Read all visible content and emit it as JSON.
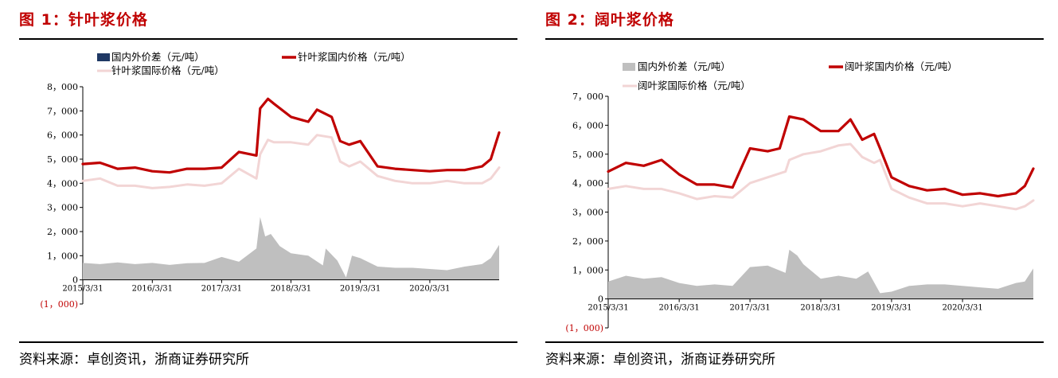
{
  "panels": [
    {
      "title": "图 1：针叶浆价格",
      "source": "资料来源：卓创资讯，浙商证券研究所",
      "chart_data": {
        "type": "line",
        "title": "图 1：针叶浆价格",
        "ylim": [
          -1000,
          8000
        ],
        "yticks": [
          "8，000",
          "7，000",
          "6，000",
          "5，000",
          "4，000",
          "3，000",
          "2，000",
          "1，000",
          "0",
          "(1，000)"
        ],
        "ytick_values": [
          8000,
          7000,
          6000,
          5000,
          4000,
          3000,
          2000,
          1000,
          0,
          -1000
        ],
        "xlim": [
          "2015-03-31",
          "2021-03-31"
        ],
        "xticks": [
          "2015/3/31",
          "2016/3/31",
          "2017/3/31",
          "2018/3/31",
          "2019/3/31",
          "2020/3/31"
        ],
        "legend_position": "top",
        "series": [
          {
            "name": "国内外价差（元/吨）",
            "type": "area",
            "color": "#bfbfbf",
            "legend_color": "#1f3864",
            "points": [
              [
                "2015-03-31",
                700
              ],
              [
                "2015-06-30",
                650
              ],
              [
                "2015-09-30",
                720
              ],
              [
                "2015-12-31",
                650
              ],
              [
                "2016-03-31",
                700
              ],
              [
                "2016-06-30",
                620
              ],
              [
                "2016-09-30",
                690
              ],
              [
                "2016-12-31",
                700
              ],
              [
                "2017-03-31",
                950
              ],
              [
                "2017-06-30",
                750
              ],
              [
                "2017-09-30",
                1300
              ],
              [
                "2017-10-20",
                2600
              ],
              [
                "2017-11-15",
                1800
              ],
              [
                "2017-12-15",
                1900
              ],
              [
                "2018-01-31",
                1400
              ],
              [
                "2018-03-31",
                1100
              ],
              [
                "2018-06-30",
                1000
              ],
              [
                "2018-09-15",
                600
              ],
              [
                "2018-09-30",
                1300
              ],
              [
                "2018-11-30",
                800
              ],
              [
                "2019-01-15",
                100
              ],
              [
                "2019-02-15",
                1000
              ],
              [
                "2019-03-31",
                900
              ],
              [
                "2019-06-30",
                550
              ],
              [
                "2019-09-30",
                500
              ],
              [
                "2019-12-31",
                500
              ],
              [
                "2020-03-31",
                450
              ],
              [
                "2020-06-30",
                400
              ],
              [
                "2020-09-30",
                550
              ],
              [
                "2020-12-31",
                650
              ],
              [
                "2021-02-15",
                900
              ],
              [
                "2021-03-31",
                1450
              ]
            ]
          },
          {
            "name": "针叶浆国内价格（元/吨）",
            "type": "line",
            "color": "#c00000",
            "points": [
              [
                "2015-03-31",
                4800
              ],
              [
                "2015-06-30",
                4850
              ],
              [
                "2015-09-30",
                4600
              ],
              [
                "2015-12-31",
                4650
              ],
              [
                "2016-03-31",
                4500
              ],
              [
                "2016-06-30",
                4450
              ],
              [
                "2016-09-30",
                4600
              ],
              [
                "2016-12-31",
                4600
              ],
              [
                "2017-03-31",
                4650
              ],
              [
                "2017-06-30",
                5300
              ],
              [
                "2017-09-30",
                5150
              ],
              [
                "2017-10-20",
                7100
              ],
              [
                "2017-11-30",
                7500
              ],
              [
                "2017-12-31",
                7300
              ],
              [
                "2018-03-31",
                6750
              ],
              [
                "2018-06-30",
                6550
              ],
              [
                "2018-08-15",
                7050
              ],
              [
                "2018-10-31",
                6750
              ],
              [
                "2018-12-15",
                5750
              ],
              [
                "2019-01-31",
                5600
              ],
              [
                "2019-03-31",
                5750
              ],
              [
                "2019-06-30",
                4700
              ],
              [
                "2019-09-30",
                4600
              ],
              [
                "2019-12-31",
                4550
              ],
              [
                "2020-03-31",
                4500
              ],
              [
                "2020-06-30",
                4550
              ],
              [
                "2020-09-30",
                4550
              ],
              [
                "2020-12-31",
                4700
              ],
              [
                "2021-02-15",
                5000
              ],
              [
                "2021-03-31",
                6100
              ]
            ]
          },
          {
            "name": "针叶浆国际价格（元/吨）",
            "type": "line",
            "color": "#f2d5d5",
            "points": [
              [
                "2015-03-31",
                4100
              ],
              [
                "2015-06-30",
                4200
              ],
              [
                "2015-09-30",
                3900
              ],
              [
                "2015-12-31",
                3900
              ],
              [
                "2016-03-31",
                3800
              ],
              [
                "2016-06-30",
                3850
              ],
              [
                "2016-09-30",
                3950
              ],
              [
                "2016-12-31",
                3900
              ],
              [
                "2017-03-31",
                4000
              ],
              [
                "2017-06-30",
                4600
              ],
              [
                "2017-09-30",
                4200
              ],
              [
                "2017-10-20",
                5200
              ],
              [
                "2017-11-30",
                5800
              ],
              [
                "2017-12-31",
                5700
              ],
              [
                "2018-03-31",
                5700
              ],
              [
                "2018-06-30",
                5600
              ],
              [
                "2018-08-15",
                6000
              ],
              [
                "2018-10-31",
                5900
              ],
              [
                "2018-12-15",
                4900
              ],
              [
                "2019-01-31",
                4700
              ],
              [
                "2019-03-31",
                4900
              ],
              [
                "2019-06-30",
                4300
              ],
              [
                "2019-09-30",
                4100
              ],
              [
                "2019-12-31",
                4000
              ],
              [
                "2020-03-31",
                4000
              ],
              [
                "2020-06-30",
                4100
              ],
              [
                "2020-09-30",
                4000
              ],
              [
                "2020-12-31",
                4000
              ],
              [
                "2021-02-15",
                4200
              ],
              [
                "2021-03-31",
                4650
              ]
            ]
          }
        ]
      }
    },
    {
      "title": "图 2：阔叶浆价格",
      "source": "资料来源：卓创资讯，浙商证券研究所",
      "chart_data": {
        "type": "line",
        "title": "图 2：阔叶浆价格",
        "ylim": [
          -1000,
          7000
        ],
        "yticks": [
          "7，000",
          "6，000",
          "5，000",
          "4，000",
          "3，000",
          "2，000",
          "1，000",
          "0",
          "(1，000)"
        ],
        "ytick_values": [
          7000,
          6000,
          5000,
          4000,
          3000,
          2000,
          1000,
          0,
          -1000
        ],
        "xlim": [
          "2015-03-31",
          "2021-03-31"
        ],
        "xticks": [
          "2015/3/31",
          "2016/3/31",
          "2017/3/31",
          "2018/3/31",
          "2019/3/31",
          "2020/3/31"
        ],
        "legend_position": "top",
        "series": [
          {
            "name": "国内外价差（元/吨）",
            "type": "area",
            "color": "#bfbfbf",
            "legend_color": "#bfbfbf",
            "points": [
              [
                "2015-03-31",
                600
              ],
              [
                "2015-06-30",
                800
              ],
              [
                "2015-09-30",
                700
              ],
              [
                "2015-12-31",
                750
              ],
              [
                "2016-03-31",
                550
              ],
              [
                "2016-06-30",
                450
              ],
              [
                "2016-09-30",
                500
              ],
              [
                "2016-12-31",
                450
              ],
              [
                "2017-03-31",
                1100
              ],
              [
                "2017-06-30",
                1150
              ],
              [
                "2017-09-30",
                900
              ],
              [
                "2017-10-20",
                1700
              ],
              [
                "2017-11-30",
                1500
              ],
              [
                "2017-12-31",
                1200
              ],
              [
                "2018-03-31",
                700
              ],
              [
                "2018-06-30",
                800
              ],
              [
                "2018-09-30",
                700
              ],
              [
                "2018-11-30",
                950
              ],
              [
                "2019-01-31",
                200
              ],
              [
                "2019-03-31",
                250
              ],
              [
                "2019-06-30",
                450
              ],
              [
                "2019-09-30",
                500
              ],
              [
                "2019-12-31",
                500
              ],
              [
                "2020-03-31",
                450
              ],
              [
                "2020-06-30",
                400
              ],
              [
                "2020-09-30",
                350
              ],
              [
                "2020-12-31",
                550
              ],
              [
                "2021-02-15",
                600
              ],
              [
                "2021-03-31",
                1050
              ]
            ]
          },
          {
            "name": "阔叶浆国内价格（元/吨）",
            "type": "line",
            "color": "#c00000",
            "points": [
              [
                "2015-03-31",
                4400
              ],
              [
                "2015-06-30",
                4700
              ],
              [
                "2015-09-30",
                4600
              ],
              [
                "2015-12-31",
                4800
              ],
              [
                "2016-03-31",
                4300
              ],
              [
                "2016-06-30",
                3950
              ],
              [
                "2016-09-30",
                3950
              ],
              [
                "2016-12-31",
                3850
              ],
              [
                "2017-03-31",
                5200
              ],
              [
                "2017-06-30",
                5100
              ],
              [
                "2017-08-31",
                5200
              ],
              [
                "2017-10-20",
                6300
              ],
              [
                "2017-12-31",
                6200
              ],
              [
                "2018-03-31",
                5800
              ],
              [
                "2018-06-30",
                5800
              ],
              [
                "2018-08-31",
                6200
              ],
              [
                "2018-10-31",
                5500
              ],
              [
                "2018-12-31",
                5700
              ],
              [
                "2019-01-31",
                5200
              ],
              [
                "2019-03-31",
                4200
              ],
              [
                "2019-06-30",
                3900
              ],
              [
                "2019-09-30",
                3750
              ],
              [
                "2019-12-31",
                3800
              ],
              [
                "2020-03-31",
                3600
              ],
              [
                "2020-06-30",
                3650
              ],
              [
                "2020-09-30",
                3550
              ],
              [
                "2020-12-31",
                3650
              ],
              [
                "2021-02-15",
                3900
              ],
              [
                "2021-03-31",
                4500
              ]
            ]
          },
          {
            "name": "阔叶浆国际价格（元/吨）",
            "type": "line",
            "color": "#f2d5d5",
            "points": [
              [
                "2015-03-31",
                3800
              ],
              [
                "2015-06-30",
                3900
              ],
              [
                "2015-09-30",
                3800
              ],
              [
                "2015-12-31",
                3800
              ],
              [
                "2016-03-31",
                3650
              ],
              [
                "2016-06-30",
                3450
              ],
              [
                "2016-09-30",
                3550
              ],
              [
                "2016-12-31",
                3500
              ],
              [
                "2017-03-31",
                4000
              ],
              [
                "2017-06-30",
                4200
              ],
              [
                "2017-09-30",
                4400
              ],
              [
                "2017-10-20",
                4800
              ],
              [
                "2017-12-31",
                5000
              ],
              [
                "2018-03-31",
                5100
              ],
              [
                "2018-06-30",
                5300
              ],
              [
                "2018-08-31",
                5350
              ],
              [
                "2018-10-31",
                4900
              ],
              [
                "2018-12-31",
                4700
              ],
              [
                "2019-01-31",
                4800
              ],
              [
                "2019-03-31",
                3800
              ],
              [
                "2019-06-30",
                3500
              ],
              [
                "2019-09-30",
                3300
              ],
              [
                "2019-12-31",
                3300
              ],
              [
                "2020-03-31",
                3200
              ],
              [
                "2020-06-30",
                3300
              ],
              [
                "2020-09-30",
                3200
              ],
              [
                "2020-12-31",
                3100
              ],
              [
                "2021-02-15",
                3200
              ],
              [
                "2021-03-31",
                3400
              ]
            ]
          }
        ]
      }
    }
  ]
}
